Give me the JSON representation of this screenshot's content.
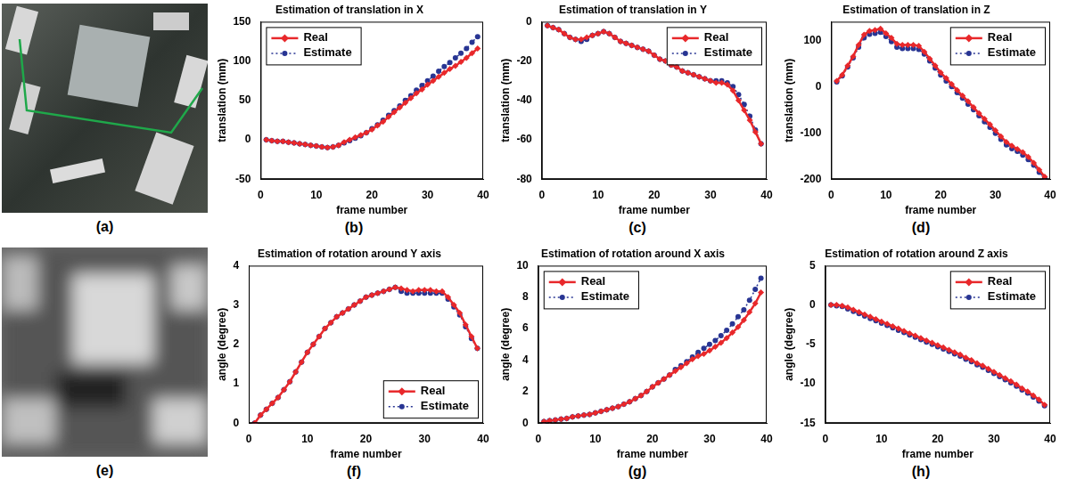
{
  "images": [
    {
      "label": "(a)"
    },
    {
      "label": "(e)"
    }
  ],
  "chart_data": [
    {
      "type": "line",
      "label": "(b)",
      "title": "Estimation of translation in X",
      "x_label": "frame number",
      "y_label": "translation (mm)",
      "x": [
        1,
        2,
        3,
        4,
        5,
        6,
        7,
        8,
        9,
        10,
        11,
        12,
        13,
        14,
        15,
        16,
        17,
        18,
        19,
        20,
        21,
        22,
        23,
        24,
        25,
        26,
        27,
        28,
        29,
        30,
        31,
        32,
        33,
        34,
        35,
        36,
        37,
        38,
        39
      ],
      "xlim": [
        0,
        40
      ],
      "xticks": [
        0,
        10,
        20,
        30,
        40
      ],
      "ylim": [
        -50,
        150
      ],
      "yticks": [
        -50,
        0,
        50,
        100,
        150
      ],
      "grid": false,
      "legend": "upper left",
      "series": [
        {
          "name": "Real",
          "color": "#e8282b",
          "marker": "diamond",
          "line_style": "solid",
          "values": [
            0,
            -1,
            -2,
            -2,
            -3,
            -4,
            -5,
            -6,
            -7,
            -8,
            -9,
            -10,
            -9,
            -7,
            -3,
            0,
            3,
            6,
            9,
            13,
            18,
            23,
            29,
            35,
            41,
            47,
            53,
            59,
            64,
            70,
            75,
            80,
            85,
            90,
            94,
            99,
            104,
            110,
            116
          ]
        },
        {
          "name": "Estimate",
          "color": "#283593",
          "marker": "circle",
          "line_style": "dotted",
          "values": [
            0,
            -1,
            -2,
            -2,
            -3,
            -4,
            -5,
            -6,
            -7,
            -8,
            -9,
            -10,
            -9,
            -7,
            -4,
            -1,
            2,
            5,
            9,
            14,
            19,
            25,
            31,
            37,
            43,
            50,
            56,
            63,
            69,
            75,
            81,
            87,
            93,
            98,
            104,
            110,
            116,
            124,
            131
          ]
        }
      ]
    },
    {
      "type": "line",
      "label": "(c)",
      "title": "Estimation of translation in Y",
      "x_label": "frame number",
      "y_label": "translation (mm)",
      "x": [
        1,
        2,
        3,
        4,
        5,
        6,
        7,
        8,
        9,
        10,
        11,
        12,
        13,
        14,
        15,
        16,
        17,
        18,
        19,
        20,
        21,
        22,
        23,
        24,
        25,
        26,
        27,
        28,
        29,
        30,
        31,
        32,
        33,
        34,
        35,
        36,
        37,
        38,
        39
      ],
      "xlim": [
        0,
        40
      ],
      "xticks": [
        0,
        10,
        20,
        30,
        40
      ],
      "ylim": [
        -80,
        0
      ],
      "yticks": [
        -80,
        -60,
        -40,
        -20,
        0
      ],
      "grid": false,
      "legend": "upper right",
      "series": [
        {
          "name": "Real",
          "color": "#e8282b",
          "marker": "diamond",
          "line_style": "solid",
          "values": [
            -2,
            -3,
            -4,
            -6,
            -8,
            -9,
            -9,
            -8,
            -7,
            -6,
            -5,
            -6,
            -8,
            -10,
            -11,
            -12,
            -13,
            -14,
            -15,
            -17,
            -19,
            -20,
            -22,
            -23,
            -25,
            -26,
            -27,
            -28,
            -29,
            -30,
            -31,
            -31,
            -32,
            -35,
            -40,
            -45,
            -50,
            -56,
            -62
          ]
        },
        {
          "name": "Estimate",
          "color": "#283593",
          "marker": "circle",
          "line_style": "dotted",
          "values": [
            -2,
            -3,
            -4,
            -6,
            -8,
            -9,
            -10,
            -9,
            -7,
            -6,
            -5,
            -6,
            -8,
            -10,
            -11,
            -12,
            -13,
            -14,
            -15,
            -17,
            -19,
            -20,
            -22,
            -23,
            -25,
            -26,
            -27,
            -28,
            -29,
            -30,
            -30,
            -30,
            -31,
            -33,
            -37,
            -42,
            -48,
            -55,
            -62
          ]
        }
      ]
    },
    {
      "type": "line",
      "label": "(d)",
      "title": "Estimation of translation in Z",
      "x_label": "frame number",
      "y_label": "translation (mm)",
      "x": [
        1,
        2,
        3,
        4,
        5,
        6,
        7,
        8,
        9,
        10,
        11,
        12,
        13,
        14,
        15,
        16,
        17,
        18,
        19,
        20,
        21,
        22,
        23,
        24,
        25,
        26,
        27,
        28,
        29,
        30,
        31,
        32,
        33,
        34,
        35,
        36,
        37,
        38,
        39
      ],
      "xlim": [
        0,
        40
      ],
      "xticks": [
        0,
        10,
        20,
        30,
        40
      ],
      "ylim": [
        -200,
        140
      ],
      "yticks": [
        -200,
        -100,
        0,
        100
      ],
      "grid": false,
      "legend": "upper right",
      "series": [
        {
          "name": "Real",
          "color": "#e8282b",
          "marker": "diamond",
          "line_style": "solid",
          "values": [
            12,
            25,
            45,
            65,
            90,
            112,
            120,
            122,
            125,
            115,
            105,
            92,
            90,
            90,
            90,
            88,
            75,
            60,
            45,
            30,
            18,
            5,
            -8,
            -20,
            -32,
            -45,
            -58,
            -70,
            -82,
            -95,
            -108,
            -120,
            -128,
            -135,
            -142,
            -152,
            -165,
            -180,
            -195
          ]
        },
        {
          "name": "Estimate",
          "color": "#283593",
          "marker": "circle",
          "line_style": "dotted",
          "values": [
            10,
            23,
            42,
            62,
            85,
            105,
            113,
            115,
            117,
            108,
            97,
            85,
            82,
            82,
            82,
            80,
            70,
            55,
            40,
            25,
            12,
            0,
            -13,
            -25,
            -38,
            -50,
            -63,
            -76,
            -88,
            -101,
            -114,
            -126,
            -134,
            -140,
            -148,
            -158,
            -170,
            -185,
            -198
          ]
        }
      ]
    },
    {
      "type": "line",
      "label": "(f)",
      "title": "Estimation of rotation around Y axis",
      "x_label": "frame number",
      "y_label": "angle (degree)",
      "x": [
        1,
        2,
        3,
        4,
        5,
        6,
        7,
        8,
        9,
        10,
        11,
        12,
        13,
        14,
        15,
        16,
        17,
        18,
        19,
        20,
        21,
        22,
        23,
        24,
        25,
        26,
        27,
        28,
        29,
        30,
        31,
        32,
        33,
        34,
        35,
        36,
        37,
        38,
        39
      ],
      "xlim": [
        0,
        40
      ],
      "xticks": [
        0,
        10,
        20,
        30,
        40
      ],
      "ylim": [
        0,
        4
      ],
      "yticks": [
        0,
        1,
        2,
        3,
        4
      ],
      "grid": false,
      "legend": "lower right",
      "series": [
        {
          "name": "Real",
          "color": "#e8282b",
          "marker": "diamond",
          "line_style": "solid",
          "values": [
            0,
            0.2,
            0.35,
            0.5,
            0.65,
            0.85,
            1.05,
            1.3,
            1.55,
            1.8,
            2.0,
            2.2,
            2.4,
            2.55,
            2.7,
            2.8,
            2.9,
            3.0,
            3.1,
            3.2,
            3.25,
            3.3,
            3.35,
            3.4,
            3.45,
            3.42,
            3.38,
            3.35,
            3.38,
            3.38,
            3.38,
            3.35,
            3.35,
            3.2,
            3.0,
            2.8,
            2.5,
            2.2,
            1.9
          ]
        },
        {
          "name": "Estimate",
          "color": "#283593",
          "marker": "circle",
          "line_style": "dotted",
          "values": [
            0,
            0.2,
            0.35,
            0.5,
            0.65,
            0.85,
            1.05,
            1.3,
            1.55,
            1.8,
            2.0,
            2.2,
            2.4,
            2.55,
            2.7,
            2.8,
            2.9,
            3.0,
            3.1,
            3.2,
            3.25,
            3.3,
            3.35,
            3.4,
            3.45,
            3.35,
            3.3,
            3.3,
            3.3,
            3.3,
            3.3,
            3.3,
            3.3,
            3.15,
            2.95,
            2.75,
            2.45,
            2.15,
            1.9
          ]
        }
      ]
    },
    {
      "type": "line",
      "label": "(g)",
      "title": "Estimation of rotation around X axis",
      "x_label": "frame number",
      "y_label": "angle (degree)",
      "x": [
        1,
        2,
        3,
        4,
        5,
        6,
        7,
        8,
        9,
        10,
        11,
        12,
        13,
        14,
        15,
        16,
        17,
        18,
        19,
        20,
        21,
        22,
        23,
        24,
        25,
        26,
        27,
        28,
        29,
        30,
        31,
        32,
        33,
        34,
        35,
        36,
        37,
        38,
        39
      ],
      "xlim": [
        0,
        40
      ],
      "xticks": [
        0,
        10,
        20,
        30,
        40
      ],
      "ylim": [
        0,
        10
      ],
      "yticks": [
        0,
        2,
        4,
        6,
        8,
        10
      ],
      "grid": false,
      "legend": "upper left",
      "series": [
        {
          "name": "Real",
          "color": "#e8282b",
          "marker": "diamond",
          "line_style": "solid",
          "values": [
            0.1,
            0.15,
            0.2,
            0.25,
            0.3,
            0.4,
            0.45,
            0.5,
            0.55,
            0.65,
            0.75,
            0.85,
            0.95,
            1.05,
            1.2,
            1.35,
            1.55,
            1.75,
            2.0,
            2.3,
            2.55,
            2.8,
            3.05,
            3.3,
            3.55,
            3.8,
            4.05,
            4.25,
            4.4,
            4.6,
            4.85,
            5.1,
            5.4,
            5.75,
            6.1,
            6.55,
            7.05,
            7.6,
            8.3
          ]
        },
        {
          "name": "Estimate",
          "color": "#283593",
          "marker": "circle",
          "line_style": "dotted",
          "values": [
            0.1,
            0.15,
            0.2,
            0.25,
            0.3,
            0.4,
            0.45,
            0.5,
            0.55,
            0.65,
            0.75,
            0.85,
            0.95,
            1.05,
            1.2,
            1.35,
            1.55,
            1.75,
            2.0,
            2.3,
            2.55,
            2.8,
            3.05,
            3.4,
            3.65,
            3.9,
            4.2,
            4.5,
            4.75,
            5.0,
            5.25,
            5.55,
            5.9,
            6.3,
            6.75,
            7.2,
            7.8,
            8.5,
            9.2
          ]
        }
      ]
    },
    {
      "type": "line",
      "label": "(h)",
      "title": "Estimation of rotation around Z axis",
      "x_label": "frame number",
      "y_label": "angle (degree)",
      "x": [
        1,
        2,
        3,
        4,
        5,
        6,
        7,
        8,
        9,
        10,
        11,
        12,
        13,
        14,
        15,
        16,
        17,
        18,
        19,
        20,
        21,
        22,
        23,
        24,
        25,
        26,
        27,
        28,
        29,
        30,
        31,
        32,
        33,
        34,
        35,
        36,
        37,
        38,
        39
      ],
      "xlim": [
        0,
        40
      ],
      "xticks": [
        0,
        10,
        20,
        30,
        40
      ],
      "ylim": [
        -15,
        5
      ],
      "yticks": [
        -15,
        -10,
        -5,
        0,
        5
      ],
      "grid": false,
      "legend": "upper right",
      "series": [
        {
          "name": "Real",
          "color": "#e8282b",
          "marker": "diamond",
          "line_style": "solid",
          "values": [
            0,
            0,
            -0.1,
            -0.3,
            -0.6,
            -0.9,
            -1.2,
            -1.5,
            -1.8,
            -2.1,
            -2.4,
            -2.7,
            -3.0,
            -3.3,
            -3.6,
            -3.9,
            -4.2,
            -4.5,
            -4.8,
            -5.1,
            -5.4,
            -5.7,
            -6.0,
            -6.3,
            -6.7,
            -7.0,
            -7.4,
            -7.7,
            -8.1,
            -8.5,
            -8.9,
            -9.3,
            -9.7,
            -10.1,
            -10.6,
            -11.0,
            -11.5,
            -12.0,
            -12.7
          ]
        },
        {
          "name": "Estimate",
          "color": "#283593",
          "marker": "circle",
          "line_style": "dotted",
          "values": [
            0,
            -0.1,
            -0.2,
            -0.5,
            -0.8,
            -1.1,
            -1.4,
            -1.7,
            -2.0,
            -2.3,
            -2.6,
            -2.9,
            -3.2,
            -3.5,
            -3.8,
            -4.1,
            -4.4,
            -4.7,
            -5.0,
            -5.3,
            -5.6,
            -5.9,
            -6.2,
            -6.5,
            -6.9,
            -7.2,
            -7.6,
            -7.9,
            -8.3,
            -8.7,
            -9.1,
            -9.5,
            -9.9,
            -10.3,
            -10.8,
            -11.2,
            -11.7,
            -12.2,
            -12.8
          ]
        }
      ]
    }
  ]
}
